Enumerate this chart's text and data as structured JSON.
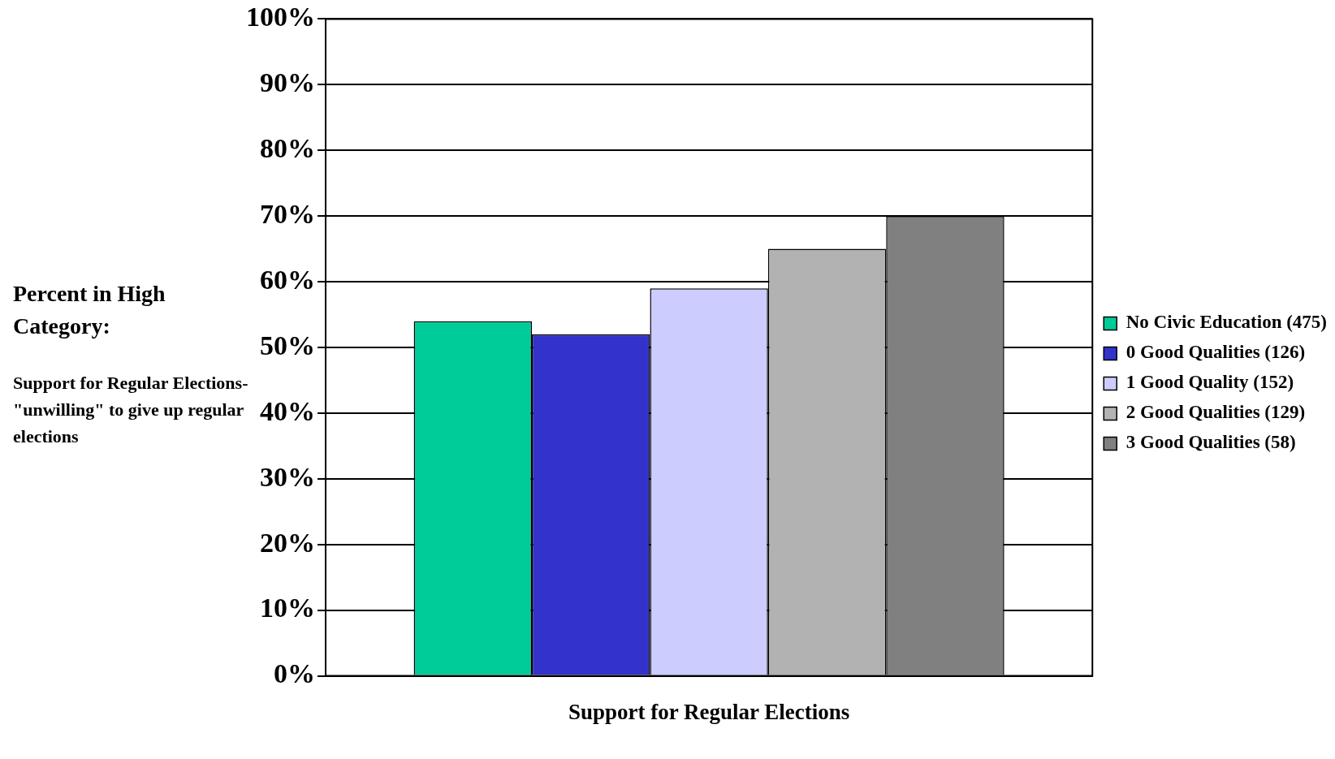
{
  "chart_data": {
    "type": "bar",
    "ylabel": "Percent in High Category:",
    "annotations": [
      "Support for Regular Elections- \"unwilling\" to give up regular elections"
    ],
    "categories": [
      "Support for Regular Elections"
    ],
    "series": [
      {
        "name": "No Civic Education (475)",
        "color": "#00cc99",
        "values": [
          54
        ]
      },
      {
        "name": "0 Good Qualities (126)",
        "color": "#3333cc",
        "values": [
          52
        ]
      },
      {
        "name": "1 Good Quality (152)",
        "color": "#ccccff",
        "values": [
          59
        ]
      },
      {
        "name": "2 Good Qualities (129)",
        "color": "#b2b2b2",
        "values": [
          65
        ]
      },
      {
        "name": "3 Good Qualities (58)",
        "color": "#808080",
        "values": [
          70
        ]
      }
    ],
    "ylim": [
      0,
      100
    ],
    "yticks": [
      {
        "value": 0,
        "label": "0%"
      },
      {
        "value": 10,
        "label": "10%"
      },
      {
        "value": 20,
        "label": "20%"
      },
      {
        "value": 30,
        "label": "30%"
      },
      {
        "value": 40,
        "label": "40%"
      },
      {
        "value": 50,
        "label": "50%"
      },
      {
        "value": 60,
        "label": "60%"
      },
      {
        "value": 70,
        "label": "70%"
      },
      {
        "value": 80,
        "label": "80%"
      },
      {
        "value": 90,
        "label": "90%"
      },
      {
        "value": 100,
        "label": "100%"
      }
    ],
    "grid": "y",
    "legend": "right"
  }
}
